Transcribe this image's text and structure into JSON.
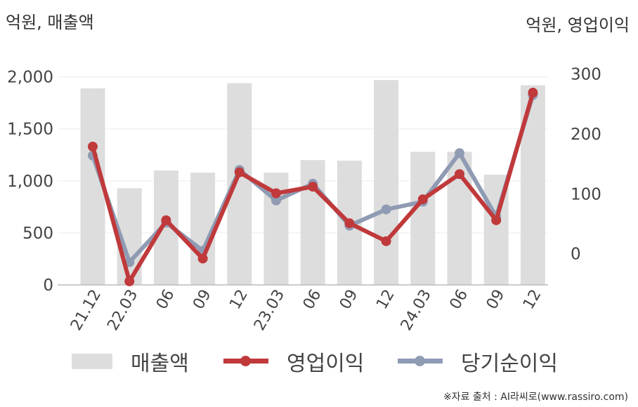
{
  "chart_data": {
    "type": "bar+line",
    "title": "",
    "categories": [
      "21.12",
      "22.03",
      "06",
      "09",
      "12",
      "23.03",
      "06",
      "09",
      "12",
      "24.03",
      "06",
      "09",
      "12"
    ],
    "left_axis": {
      "unit_label": "억원, 매출액",
      "ticks": [
        "0",
        "500",
        "1,000",
        "1,500",
        "2,000"
      ],
      "range": [
        0,
        2200
      ]
    },
    "right_axis": {
      "unit_label": "억원, 영업이익",
      "ticks": [
        "0",
        "100",
        "200",
        "300"
      ],
      "range": [
        -52,
        330
      ]
    },
    "series": [
      {
        "name": "매출액",
        "type": "bar",
        "axis": "left",
        "color": "#dddddd",
        "values": [
          1890,
          930,
          1100,
          1080,
          1940,
          1080,
          1200,
          1195,
          1970,
          1280,
          1280,
          1060,
          1920
        ]
      },
      {
        "name": "영업이익",
        "type": "line",
        "axis": "right",
        "color": "#c0393b",
        "values": [
          179,
          -46,
          56,
          -8,
          136,
          101,
          112,
          51,
          21,
          91,
          133,
          56,
          269
        ]
      },
      {
        "name": "당기순이익",
        "type": "line",
        "axis": "right",
        "color": "#8f9bb3",
        "values": [
          164,
          -14,
          52,
          5,
          140,
          89,
          117,
          47,
          74,
          87,
          168,
          62,
          265
        ]
      }
    ],
    "grid": true,
    "legend_position": "bottom"
  },
  "source_text": "※자료 출처 : AI라씨로(www.rassiro.com)"
}
